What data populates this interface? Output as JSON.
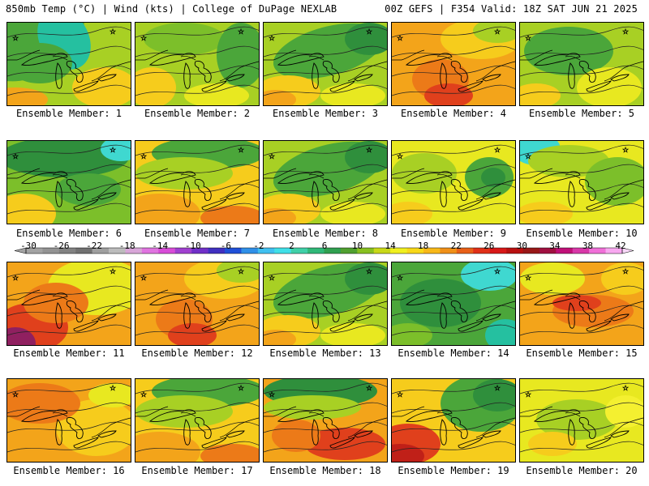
{
  "header": {
    "left": "850mb Temp (°C) | Wind (kts) | College of DuPage NEXLAB",
    "right": "00Z GEFS | F354 Valid: 18Z SAT JUN 21 2025"
  },
  "colorbar": {
    "labels": [
      "-30",
      "-26",
      "-22",
      "-18",
      "-14",
      "-10",
      "-6",
      "-2",
      "2",
      "6",
      "10",
      "14",
      "18",
      "22",
      "26",
      "30",
      "34",
      "38",
      "42"
    ],
    "colors": [
      "#a3a3a3",
      "#939393",
      "#828282",
      "#717171",
      "#9f9f9f",
      "#bcbcbc",
      "#d8a6d8",
      "#e074e0",
      "#d84cd8",
      "#a040d0",
      "#7030c8",
      "#4030c0",
      "#2050d8",
      "#3090e8",
      "#40c0f0",
      "#40e0e8",
      "#40d0a8",
      "#30b878",
      "#30a050",
      "#50a030",
      "#88c020",
      "#c8d818",
      "#f0f020",
      "#f8d818",
      "#f8b818",
      "#f09018",
      "#e86018",
      "#e03018",
      "#d81818",
      "#b81010",
      "#981818",
      "#a01040",
      "#c01078",
      "#d838a8",
      "#f070d8",
      "#f8a8f0"
    ]
  },
  "members": [
    {
      "label": "Ensemble Member: 1",
      "style": "cool-nw"
    },
    {
      "label": "Ensemble Member: 2",
      "style": "mild"
    },
    {
      "label": "Ensemble Member: 3",
      "style": "mild-green"
    },
    {
      "label": "Ensemble Member: 4",
      "style": "warm"
    },
    {
      "label": "Ensemble Member: 5",
      "style": "low-cool"
    },
    {
      "label": "Ensemble Member: 6",
      "style": "cool-n"
    },
    {
      "label": "Ensemble Member: 7",
      "style": "warm-south"
    },
    {
      "label": "Ensemble Member: 8",
      "style": "mild-green"
    },
    {
      "label": "Ensemble Member: 9",
      "style": "low-east"
    },
    {
      "label": "Ensemble Member: 10",
      "style": "cool-nw-yellow"
    },
    {
      "label": "Ensemble Member: 11",
      "style": "hot-sw"
    },
    {
      "label": "Ensemble Member: 12",
      "style": "warm"
    },
    {
      "label": "Ensemble Member: 13",
      "style": "mild-green"
    },
    {
      "label": "Ensemble Member: 14",
      "style": "cool-ne"
    },
    {
      "label": "Ensemble Member: 15",
      "style": "warm-low"
    },
    {
      "label": "Ensemble Member: 16",
      "style": "warm-flat"
    },
    {
      "label": "Ensemble Member: 17",
      "style": "warm-south"
    },
    {
      "label": "Ensemble Member: 18",
      "style": "warm-south-green"
    },
    {
      "label": "Ensemble Member: 19",
      "style": "hot-sw-green"
    },
    {
      "label": "Ensemble Member: 20",
      "style": "mild-yellow"
    }
  ]
}
